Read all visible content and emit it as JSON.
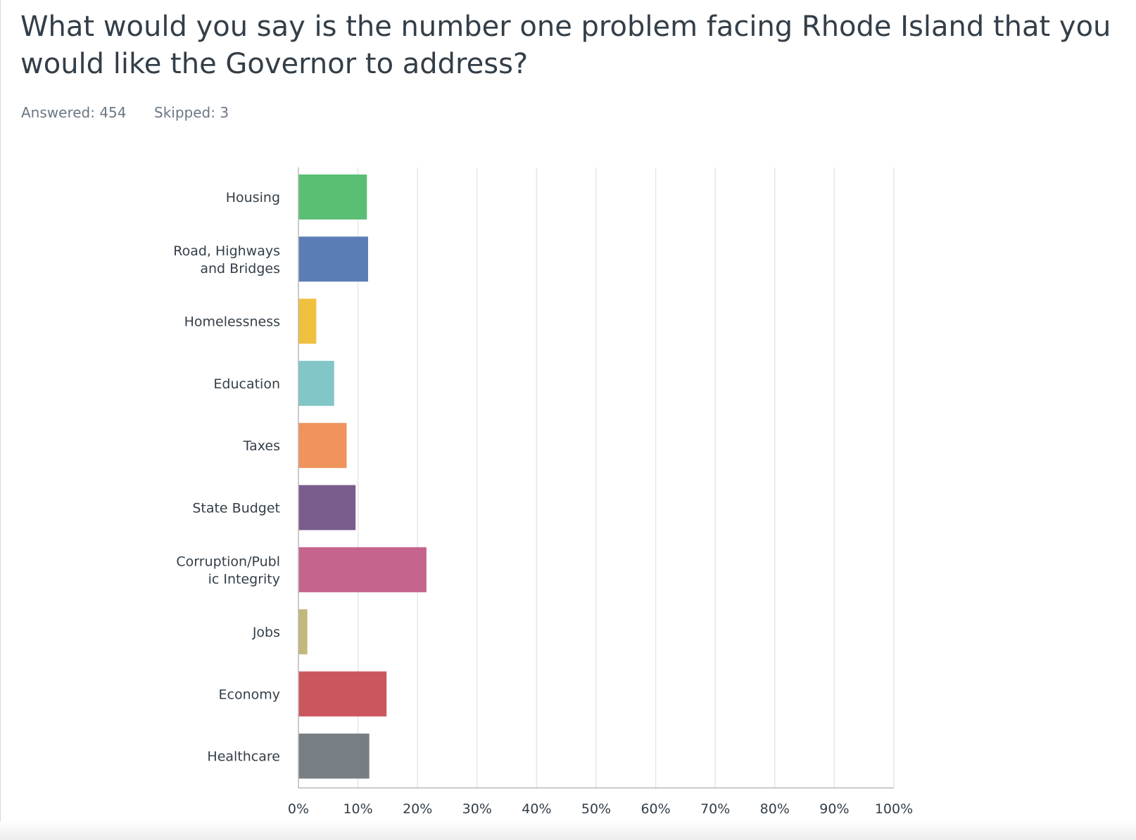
{
  "question": {
    "title_line1": "What would you say is the number one problem facing Rhode Island that you",
    "title_line2": "would like the Governor to address?"
  },
  "stats": {
    "answered": "Answered: 454",
    "skipped": "Skipped: 3"
  },
  "chart_data": {
    "type": "bar",
    "orientation": "horizontal",
    "title": "",
    "xlabel": "",
    "ylabel": "",
    "xlim": [
      0,
      100
    ],
    "grid": true,
    "categories": [
      [
        "Housing"
      ],
      [
        "Road, Highways",
        "and Bridges"
      ],
      [
        "Homelessness"
      ],
      [
        "Education"
      ],
      [
        "Taxes"
      ],
      [
        "State Budget"
      ],
      [
        "Corruption/Publ",
        "ic Integrity"
      ],
      [
        "Jobs"
      ],
      [
        "Economy"
      ],
      [
        "Healthcare"
      ]
    ],
    "values": [
      11.5,
      11.7,
      3.0,
      6.0,
      8.1,
      9.6,
      21.5,
      1.5,
      14.8,
      11.9
    ],
    "colors": [
      "#5abf75",
      "#5b7db5",
      "#efc13f",
      "#82c6c7",
      "#f0935c",
      "#7a5d8c",
      "#c5648d",
      "#c3b87c",
      "#cc565e",
      "#787f84"
    ],
    "ticks": [
      "0%",
      "10%",
      "20%",
      "30%",
      "40%",
      "50%",
      "60%",
      "70%",
      "80%",
      "90%",
      "100%"
    ]
  }
}
